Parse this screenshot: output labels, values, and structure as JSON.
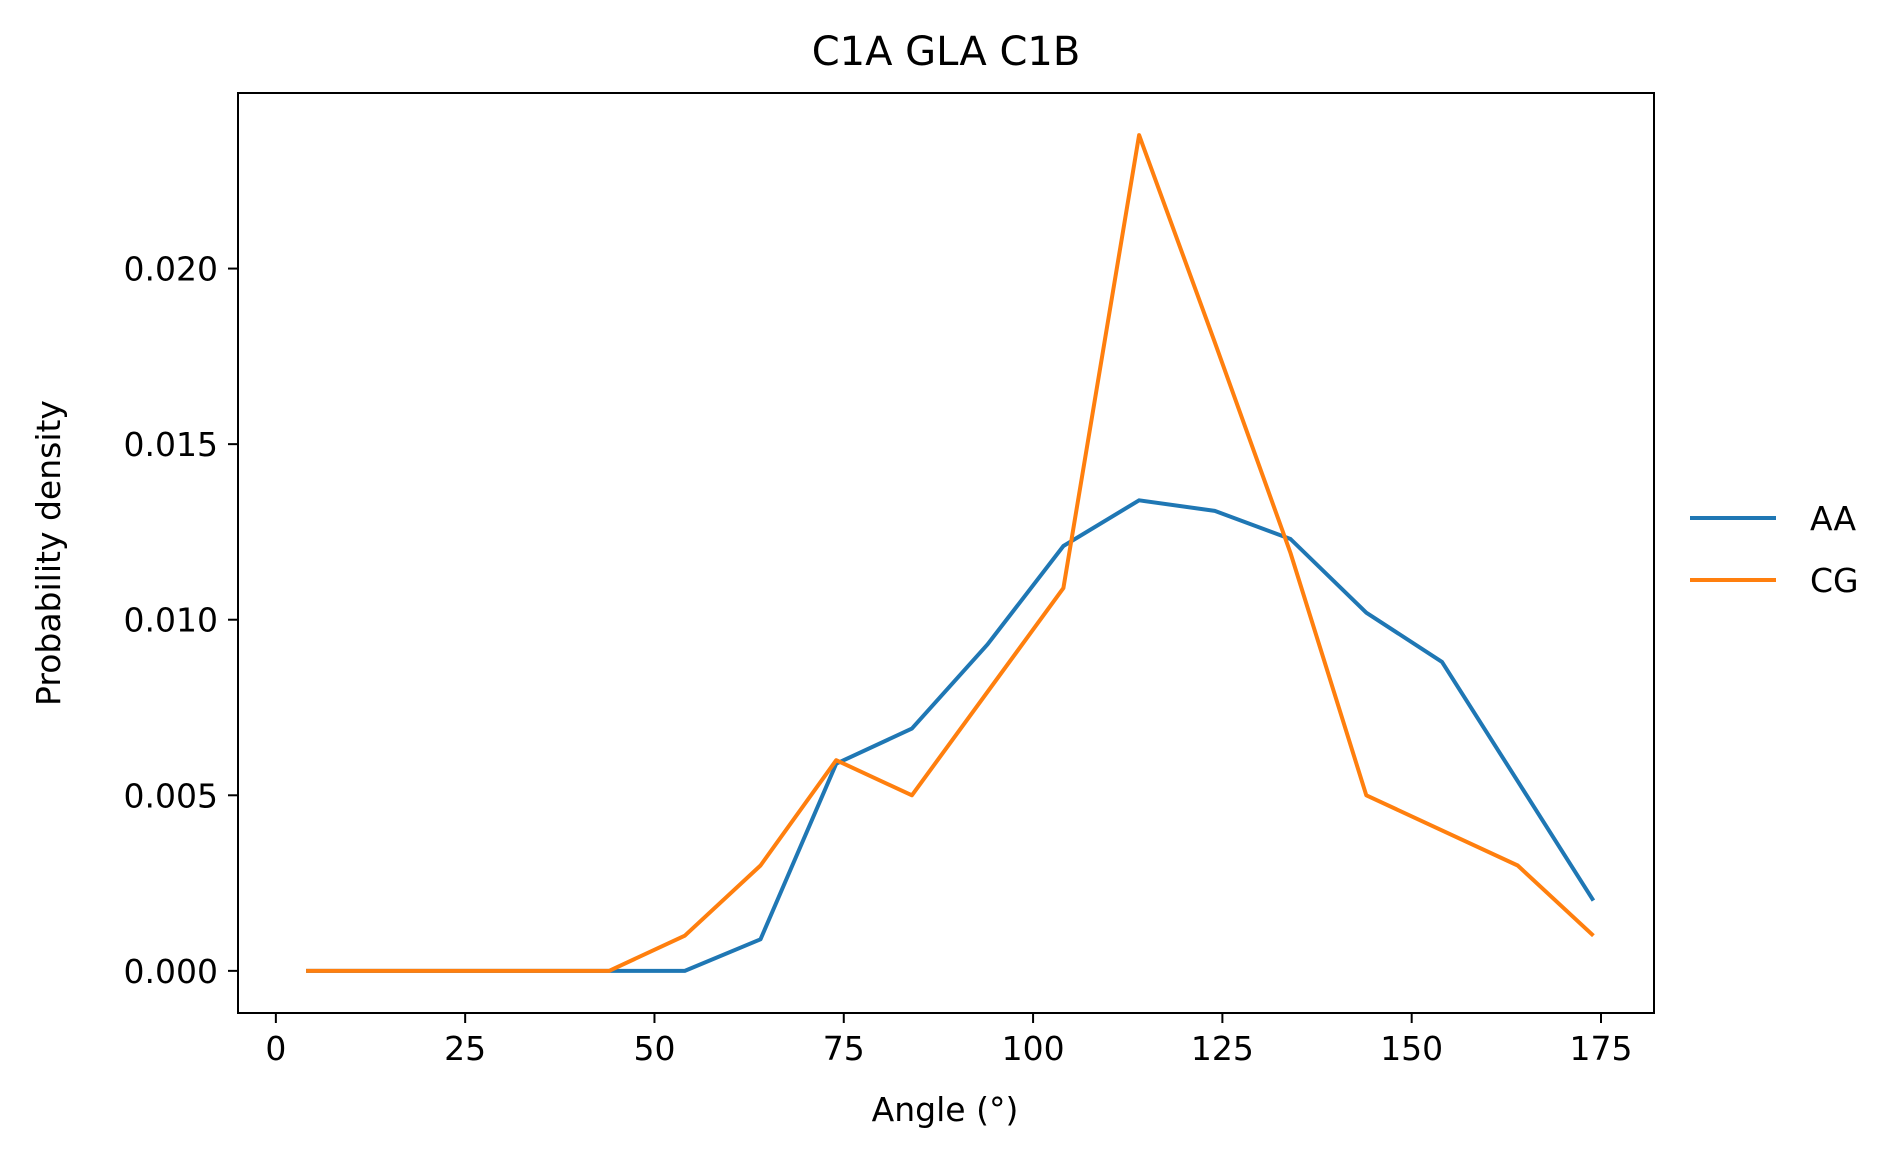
{
  "chart_data": {
    "type": "line",
    "title": "C1A GLA C1B",
    "xlabel": "Angle (°)",
    "ylabel": "Probability density",
    "xlim": [
      -5,
      182
    ],
    "ylim": [
      -0.0012,
      0.025
    ],
    "xticks": [
      0,
      25,
      50,
      75,
      100,
      125,
      150,
      175
    ],
    "xtick_labels": [
      "0",
      "25",
      "50",
      "75",
      "100",
      "125",
      "150",
      "175"
    ],
    "yticks": [
      0.0,
      0.005,
      0.01,
      0.015,
      0.02
    ],
    "ytick_labels": [
      "0.000",
      "0.005",
      "0.010",
      "0.015",
      "0.020"
    ],
    "grid": false,
    "legend_position": "outside-right",
    "series": [
      {
        "name": "AA",
        "color": "#1f77b4",
        "x": [
          4,
          14,
          24,
          34,
          44,
          54,
          64,
          74,
          84,
          94,
          104,
          114,
          124,
          134,
          144,
          154,
          164,
          174
        ],
        "y": [
          0.0,
          0.0,
          0.0,
          0.0,
          0.0,
          0.0,
          0.0009,
          0.0059,
          0.0069,
          0.0093,
          0.0121,
          0.0134,
          0.0131,
          0.0123,
          0.0102,
          0.0088,
          0.0054,
          0.002
        ]
      },
      {
        "name": "CG",
        "color": "#ff7f0e",
        "x": [
          4,
          14,
          24,
          34,
          44,
          54,
          64,
          74,
          84,
          104,
          114,
          124,
          134,
          144,
          154,
          164,
          174
        ],
        "y": [
          0.0,
          0.0,
          0.0,
          0.0,
          0.0,
          0.001,
          0.003,
          0.006,
          0.005,
          0.0109,
          0.0238,
          0.0179,
          0.0119,
          0.005,
          0.004,
          0.003,
          0.001
        ]
      }
    ]
  }
}
